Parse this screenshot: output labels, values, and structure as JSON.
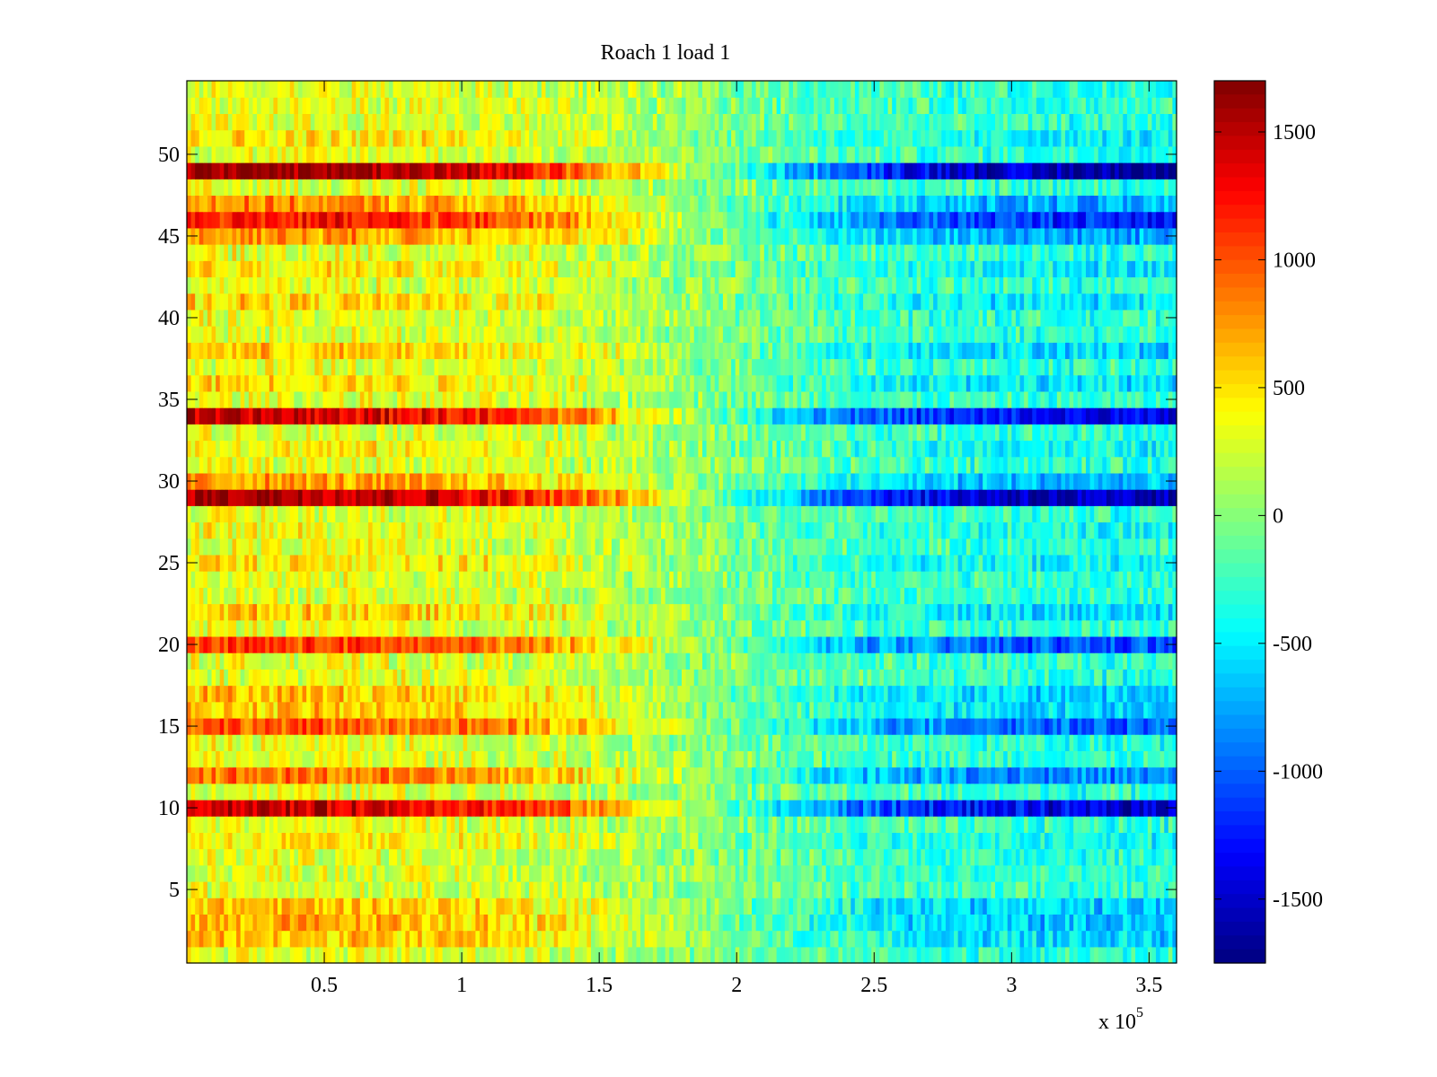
{
  "chart_data": {
    "type": "heatmap",
    "title": "Roach 1 load 1",
    "xlabel": "",
    "ylabel": "",
    "x_multiplier_label": "x 10",
    "x_multiplier_exponent": "5",
    "xlim": [
      0,
      3.6
    ],
    "ylim": [
      0.5,
      54.5
    ],
    "rows": 54,
    "x_ticks": [
      {
        "value": 0.5,
        "label": "0.5"
      },
      {
        "value": 1,
        "label": "1"
      },
      {
        "value": 1.5,
        "label": "1.5"
      },
      {
        "value": 2,
        "label": "2"
      },
      {
        "value": 2.5,
        "label": "2.5"
      },
      {
        "value": 3,
        "label": "3"
      },
      {
        "value": 3.5,
        "label": "3.5"
      }
    ],
    "y_ticks": [
      {
        "value": 5,
        "label": "5"
      },
      {
        "value": 10,
        "label": "10"
      },
      {
        "value": 15,
        "label": "15"
      },
      {
        "value": 20,
        "label": "20"
      },
      {
        "value": 25,
        "label": "25"
      },
      {
        "value": 30,
        "label": "30"
      },
      {
        "value": 35,
        "label": "35"
      },
      {
        "value": 40,
        "label": "40"
      },
      {
        "value": 45,
        "label": "45"
      },
      {
        "value": 50,
        "label": "50"
      }
    ],
    "colorbar": {
      "colormap": "jet",
      "range": [
        -1750,
        1700
      ],
      "ticks": [
        {
          "value": 1500,
          "label": "1500"
        },
        {
          "value": 1000,
          "label": "1000"
        },
        {
          "value": 500,
          "label": "500"
        },
        {
          "value": 0,
          "label": "0"
        },
        {
          "value": -500,
          "label": "-500"
        },
        {
          "value": -1000,
          "label": "-1000"
        },
        {
          "value": -1500,
          "label": "-1500"
        }
      ]
    },
    "row_amplitude": [
      {
        "row": 49,
        "amplitude": 1700
      },
      {
        "row": 34,
        "amplitude": 1450
      },
      {
        "row": 29,
        "amplitude": 1650
      },
      {
        "row": 10,
        "amplitude": 1500
      },
      {
        "row": 46,
        "amplitude": 1250
      },
      {
        "row": 20,
        "amplitude": 1100
      },
      {
        "row": 15,
        "amplitude": 1000
      },
      {
        "row": 12,
        "amplitude": 900
      },
      {
        "row": 47,
        "amplitude": 800
      },
      {
        "row": 45,
        "amplitude": 800
      },
      {
        "row": 30,
        "amplitude": 750
      },
      {
        "row": 3,
        "amplitude": 700
      },
      {
        "row": 4,
        "amplitude": 650
      },
      {
        "row": 2,
        "amplitude": 600
      },
      {
        "row": 17,
        "amplitude": 650
      },
      {
        "row": 16,
        "amplitude": 600
      },
      {
        "row": 22,
        "amplitude": 600
      },
      {
        "row": 38,
        "amplitude": 600
      },
      {
        "row": 41,
        "amplitude": 550
      },
      {
        "row": 36,
        "amplitude": 550
      },
      {
        "row": 25,
        "amplitude": 500
      },
      {
        "row": 43,
        "amplitude": 500
      },
      {
        "row": 51,
        "amplitude": 500
      },
      {
        "row": 8,
        "amplitude": 450
      },
      {
        "row": 32,
        "amplitude": 450
      },
      {
        "row": 27,
        "amplitude": 400
      }
    ],
    "default_amplitude": 330,
    "trend": "positive values on the left (low x) transitioning to negative values on the right (high x), crossover near x = 1.9"
  }
}
